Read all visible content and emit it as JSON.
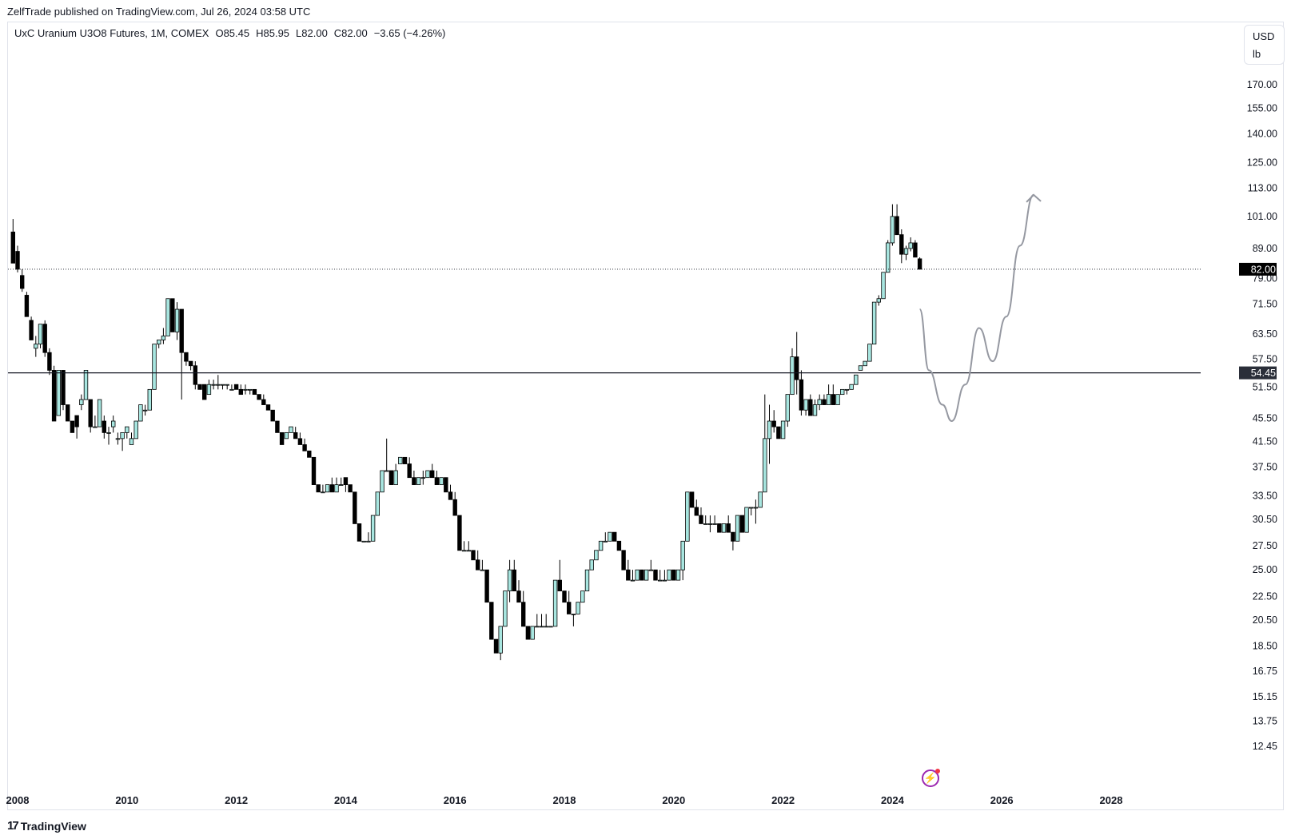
{
  "header": {
    "published": "ZelfTrade published on TradingView.com, Jul 26, 2024 03:58 UTC"
  },
  "legend": {
    "symbol": "UxC Uranium U3O8 Futures, 1M, COMEX",
    "open": "O85.45",
    "high": "H85.95",
    "low": "L82.00",
    "close": "C82.00",
    "change": "−3.65 (−4.26%)"
  },
  "currency": {
    "code": "USD",
    "unit": "lb"
  },
  "footer": {
    "brand": "TradingView",
    "logo": "tradingview-logo-icon"
  },
  "icons": {
    "flash": "lightning-icon"
  },
  "colors": {
    "up_fill": "#a8e6e0",
    "down_fill": "#000000",
    "edge": "#000000",
    "drawing": "#9598a1",
    "hline": "#131722"
  },
  "chart_data": {
    "type": "candlestick",
    "title": "UxC Uranium U3O8 Futures, 1M, COMEX",
    "y_scale": "log",
    "y_ticks": [
      "170.00",
      "155.00",
      "140.00",
      "125.00",
      "113.00",
      "101.00",
      "89.00",
      "79.00",
      "71.50",
      "63.50",
      "57.50",
      "51.50",
      "45.50",
      "41.50",
      "37.50",
      "33.50",
      "30.50",
      "27.50",
      "25.00",
      "22.50",
      "20.50",
      "18.50",
      "16.75",
      "15.15",
      "13.75",
      "12.45"
    ],
    "x_ticks": [
      "2008",
      "2010",
      "2012",
      "2014",
      "2016",
      "2018",
      "2020",
      "2022",
      "2024",
      "2026",
      "2028"
    ],
    "price_labels": [
      {
        "value": "82.00",
        "style": "last-price"
      },
      {
        "value": "54.45",
        "style": "horizontal-line"
      }
    ],
    "horizontal_line": 54.45,
    "last_price": 82.0,
    "projection_path": [
      [
        "2024-07",
        70
      ],
      [
        "2024-09",
        55
      ],
      [
        "2024-12",
        48
      ],
      [
        "2025-02",
        45
      ],
      [
        "2025-05",
        52
      ],
      [
        "2025-08",
        65
      ],
      [
        "2025-11",
        57
      ],
      [
        "2026-02",
        68
      ],
      [
        "2026-05",
        90
      ],
      [
        "2026-08",
        110
      ]
    ],
    "candles": [
      [
        "2007-12",
        95,
        100,
        84,
        84
      ],
      [
        "2008-01",
        88,
        90,
        81,
        82
      ],
      [
        "2008-02",
        80,
        82,
        75,
        76
      ],
      [
        "2008-03",
        74,
        75,
        68,
        68
      ],
      [
        "2008-04",
        67,
        68,
        62,
        62
      ],
      [
        "2008-05",
        60,
        63,
        58,
        61
      ],
      [
        "2008-06",
        61,
        66,
        60,
        66
      ],
      [
        "2008-07",
        66,
        67,
        58,
        59
      ],
      [
        "2008-08",
        59,
        60,
        54,
        55
      ],
      [
        "2008-09",
        55,
        56,
        45,
        45
      ],
      [
        "2008-10",
        46,
        55,
        46,
        55
      ],
      [
        "2008-11",
        55,
        55,
        47,
        48
      ],
      [
        "2008-12",
        48,
        48,
        45,
        45
      ],
      [
        "2009-01",
        45,
        45,
        43,
        43
      ],
      [
        "2009-02",
        46,
        46,
        42,
        44
      ],
      [
        "2009-03",
        48,
        50,
        47,
        49
      ],
      [
        "2009-04",
        49,
        55,
        49,
        55
      ],
      [
        "2009-05",
        49,
        49,
        43,
        44
      ],
      [
        "2009-06",
        44,
        46,
        44,
        44
      ],
      [
        "2009-07",
        44,
        49,
        44,
        49
      ],
      [
        "2009-08",
        45,
        46,
        42,
        43
      ],
      [
        "2009-09",
        43,
        44,
        41,
        43
      ],
      [
        "2009-10",
        44,
        46,
        43,
        45
      ],
      [
        "2009-11",
        42,
        43,
        41,
        42
      ],
      [
        "2009-12",
        42,
        43,
        40,
        43
      ],
      [
        "2010-01",
        43,
        44,
        42,
        44
      ],
      [
        "2010-02",
        41,
        43,
        41,
        42
      ],
      [
        "2010-03",
        42,
        45,
        42,
        45
      ],
      [
        "2010-04",
        45,
        48,
        45,
        48
      ],
      [
        "2010-05",
        47,
        48,
        46,
        47
      ],
      [
        "2010-06",
        47,
        51,
        47,
        51
      ],
      [
        "2010-07",
        51,
        61,
        51,
        61
      ],
      [
        "2010-08",
        61,
        62,
        60,
        62
      ],
      [
        "2010-09",
        62,
        65,
        61,
        63
      ],
      [
        "2010-10",
        63,
        73,
        63,
        73
      ],
      [
        "2010-11",
        73,
        73,
        64,
        64
      ],
      [
        "2010-12",
        64,
        72,
        62,
        70
      ],
      [
        "2011-01",
        70,
        70,
        49,
        59
      ],
      [
        "2011-02",
        59,
        59,
        56,
        57
      ],
      [
        "2011-03",
        57,
        57,
        55,
        56
      ],
      [
        "2011-04",
        56,
        57,
        51,
        52
      ],
      [
        "2011-05",
        52,
        52,
        51,
        51
      ],
      [
        "2011-06",
        52,
        52,
        49,
        49
      ],
      [
        "2011-07",
        50,
        53,
        50,
        52
      ],
      [
        "2011-08",
        52,
        53,
        51,
        52
      ],
      [
        "2011-09",
        52,
        54,
        51,
        52
      ],
      [
        "2011-10",
        52,
        52,
        51,
        52
      ],
      [
        "2011-11",
        52,
        52,
        51,
        52
      ],
      [
        "2011-12",
        51,
        52,
        51,
        51
      ],
      [
        "2012-01",
        52,
        52,
        51,
        51
      ],
      [
        "2012-02",
        51,
        52,
        50,
        50
      ],
      [
        "2012-03",
        51,
        52,
        50,
        51
      ],
      [
        "2012-04",
        51,
        51,
        50,
        51
      ],
      [
        "2012-05",
        51,
        51,
        50,
        50
      ],
      [
        "2012-06",
        50,
        50,
        49,
        49
      ],
      [
        "2012-07",
        49,
        50,
        48,
        48
      ],
      [
        "2012-08",
        48,
        48,
        47,
        47
      ],
      [
        "2012-09",
        47,
        47,
        45,
        45
      ],
      [
        "2012-10",
        45,
        45,
        43,
        43
      ],
      [
        "2012-11",
        43,
        43,
        41,
        41
      ],
      [
        "2012-12",
        42,
        43,
        42,
        43
      ],
      [
        "2013-01",
        43,
        44,
        43,
        44
      ],
      [
        "2013-02",
        43,
        44,
        42,
        42
      ],
      [
        "2013-03",
        42,
        43,
        41,
        41
      ],
      [
        "2013-04",
        41,
        42,
        40,
        40
      ],
      [
        "2013-05",
        40,
        40,
        39,
        39
      ],
      [
        "2013-06",
        39,
        39,
        35,
        35
      ],
      [
        "2013-07",
        35,
        35,
        34,
        34
      ],
      [
        "2013-08",
        34,
        35,
        34,
        34
      ],
      [
        "2013-09",
        34,
        35,
        34,
        35
      ],
      [
        "2013-10",
        35,
        36,
        34,
        34
      ],
      [
        "2013-11",
        34,
        36,
        34,
        35
      ],
      [
        "2013-12",
        35,
        36,
        35,
        35
      ],
      [
        "2014-01",
        36,
        36,
        34,
        35
      ],
      [
        "2014-02",
        35,
        35,
        34,
        34
      ],
      [
        "2014-03",
        34,
        34,
        30,
        30
      ],
      [
        "2014-04",
        30,
        30,
        28,
        28
      ],
      [
        "2014-05",
        28,
        28,
        28,
        28
      ],
      [
        "2014-06",
        28,
        29,
        28,
        28
      ],
      [
        "2014-07",
        28,
        31,
        28,
        31
      ],
      [
        "2014-08",
        31,
        34,
        31,
        34
      ],
      [
        "2014-09",
        34,
        37,
        34,
        37
      ],
      [
        "2014-10",
        37,
        42,
        37,
        37
      ],
      [
        "2014-11",
        37,
        37,
        35,
        35
      ],
      [
        "2014-12",
        35,
        38,
        35,
        37
      ],
      [
        "2015-01",
        38,
        39,
        38,
        39
      ],
      [
        "2015-02",
        39,
        39,
        38,
        38
      ],
      [
        "2015-03",
        38,
        39,
        36,
        36
      ],
      [
        "2015-04",
        36,
        37,
        35,
        35
      ],
      [
        "2015-05",
        35,
        36,
        35,
        36
      ],
      [
        "2015-06",
        36,
        37,
        35,
        36
      ],
      [
        "2015-07",
        36,
        37,
        36,
        37
      ],
      [
        "2015-08",
        37,
        38,
        36,
        36
      ],
      [
        "2015-09",
        36,
        37,
        35,
        35
      ],
      [
        "2015-10",
        35,
        36,
        35,
        36
      ],
      [
        "2015-11",
        36,
        36,
        34,
        34
      ],
      [
        "2015-12",
        34,
        35,
        33,
        33
      ],
      [
        "2016-01",
        33,
        34,
        31,
        31
      ],
      [
        "2016-02",
        31,
        31,
        27,
        27
      ],
      [
        "2016-03",
        27,
        28,
        27,
        27
      ],
      [
        "2016-04",
        27,
        28,
        27,
        27
      ],
      [
        "2016-05",
        27,
        27,
        26,
        26
      ],
      [
        "2016-06",
        26,
        27,
        25,
        25
      ],
      [
        "2016-07",
        25,
        26,
        25,
        25
      ],
      [
        "2016-08",
        25,
        25,
        22,
        22
      ],
      [
        "2016-09",
        22,
        22,
        19,
        19
      ],
      [
        "2016-10",
        19,
        19,
        18,
        18
      ],
      [
        "2016-11",
        18,
        20,
        17.5,
        20
      ],
      [
        "2016-12",
        20,
        23,
        20,
        23
      ],
      [
        "2017-01",
        23,
        26,
        22,
        25
      ],
      [
        "2017-02",
        25,
        26,
        23,
        23
      ],
      [
        "2017-03",
        23,
        24,
        22,
        22
      ],
      [
        "2017-04",
        22,
        23,
        20,
        20
      ],
      [
        "2017-05",
        20,
        20,
        19,
        19
      ],
      [
        "2017-06",
        19,
        20,
        19,
        20
      ],
      [
        "2017-07",
        20,
        21,
        20,
        20
      ],
      [
        "2017-08",
        20,
        21,
        20,
        20
      ],
      [
        "2017-09",
        20,
        21,
        20,
        20
      ],
      [
        "2017-10",
        20,
        20,
        20,
        20
      ],
      [
        "2017-11",
        20,
        24,
        20,
        24
      ],
      [
        "2017-12",
        24,
        26,
        23,
        23
      ],
      [
        "2018-01",
        23,
        23,
        22,
        22
      ],
      [
        "2018-02",
        22,
        23,
        21,
        21
      ],
      [
        "2018-03",
        21,
        21,
        20,
        21
      ],
      [
        "2018-04",
        21,
        22,
        21,
        22
      ],
      [
        "2018-05",
        22,
        23,
        22,
        23
      ],
      [
        "2018-06",
        23,
        25,
        23,
        25
      ],
      [
        "2018-07",
        25,
        26,
        25,
        26
      ],
      [
        "2018-08",
        26,
        27,
        26,
        27
      ],
      [
        "2018-09",
        27,
        28,
        27,
        28
      ],
      [
        "2018-10",
        28,
        29,
        28,
        28
      ],
      [
        "2018-11",
        28,
        29,
        28,
        29
      ],
      [
        "2018-12",
        29,
        29,
        28,
        28
      ],
      [
        "2019-01",
        28,
        28,
        27,
        27
      ],
      [
        "2019-02",
        27,
        27,
        25,
        25
      ],
      [
        "2019-03",
        25,
        26,
        24,
        24
      ],
      [
        "2019-04",
        24,
        25,
        24,
        24
      ],
      [
        "2019-05",
        24,
        25,
        24,
        25
      ],
      [
        "2019-06",
        25,
        25,
        24,
        24
      ],
      [
        "2019-07",
        24,
        25,
        24,
        25
      ],
      [
        "2019-08",
        25,
        26,
        25,
        25
      ],
      [
        "2019-09",
        25,
        25,
        24,
        24
      ],
      [
        "2019-10",
        24,
        25,
        24,
        24
      ],
      [
        "2019-11",
        24,
        25,
        24,
        24
      ],
      [
        "2019-12",
        24,
        25,
        24,
        25
      ],
      [
        "2020-01",
        25,
        25,
        24,
        24
      ],
      [
        "2020-02",
        24,
        25,
        24,
        25
      ],
      [
        "2020-03",
        25,
        28,
        24,
        28
      ],
      [
        "2020-04",
        28,
        34,
        28,
        34
      ],
      [
        "2020-05",
        34,
        34,
        32,
        32
      ],
      [
        "2020-06",
        32,
        33,
        31,
        31
      ],
      [
        "2020-07",
        31,
        32,
        30,
        30
      ],
      [
        "2020-08",
        30,
        31,
        30,
        30
      ],
      [
        "2020-09",
        30,
        31,
        29,
        30
      ],
      [
        "2020-10",
        30,
        31,
        30,
        30
      ],
      [
        "2020-11",
        30,
        30,
        29,
        29
      ],
      [
        "2020-12",
        29,
        30,
        29,
        30
      ],
      [
        "2021-01",
        30,
        31,
        29,
        29
      ],
      [
        "2021-02",
        29,
        29,
        27,
        28
      ],
      [
        "2021-03",
        28,
        31,
        28,
        31
      ],
      [
        "2021-04",
        31,
        31,
        29,
        29
      ],
      [
        "2021-05",
        29,
        32,
        29,
        32
      ],
      [
        "2021-06",
        32,
        32,
        31,
        32
      ],
      [
        "2021-07",
        32,
        33,
        30,
        32
      ],
      [
        "2021-08",
        32,
        34,
        32,
        34
      ],
      [
        "2021-09",
        34,
        50,
        34,
        42
      ],
      [
        "2021-10",
        42,
        48,
        38,
        45
      ],
      [
        "2021-11",
        45,
        47,
        43,
        44
      ],
      [
        "2021-12",
        44,
        44,
        42,
        42
      ],
      [
        "2022-01",
        42,
        45,
        42,
        45
      ],
      [
        "2022-02",
        45,
        50,
        44,
        50
      ],
      [
        "2022-03",
        50,
        60,
        50,
        58
      ],
      [
        "2022-04",
        58,
        64,
        50,
        53
      ],
      [
        "2022-05",
        53,
        55,
        46,
        47
      ],
      [
        "2022-06",
        47,
        49,
        46,
        49
      ],
      [
        "2022-07",
        49,
        50,
        46,
        46
      ],
      [
        "2022-08",
        46,
        49,
        46,
        48
      ],
      [
        "2022-09",
        48,
        50,
        47,
        49
      ],
      [
        "2022-10",
        49,
        50,
        48,
        48
      ],
      [
        "2022-11",
        48,
        52,
        48,
        50
      ],
      [
        "2022-12",
        50,
        52,
        48,
        48
      ],
      [
        "2023-01",
        48,
        50,
        48,
        50
      ],
      [
        "2023-02",
        50,
        51,
        50,
        51
      ],
      [
        "2023-03",
        51,
        51,
        50,
        51
      ],
      [
        "2023-04",
        51,
        52,
        51,
        52
      ],
      [
        "2023-05",
        52,
        54,
        52,
        54
      ],
      [
        "2023-06",
        55,
        56,
        55,
        56
      ],
      [
        "2023-07",
        56,
        57,
        56,
        57
      ],
      [
        "2023-08",
        57,
        61,
        57,
        61
      ],
      [
        "2023-09",
        61,
        72,
        61,
        72
      ],
      [
        "2023-10",
        72,
        74,
        71,
        73
      ],
      [
        "2023-11",
        73,
        81,
        73,
        81
      ],
      [
        "2023-12",
        81,
        92,
        81,
        91
      ],
      [
        "2024-01",
        91,
        106,
        90,
        101
      ],
      [
        "2024-02",
        101,
        106,
        94,
        94
      ],
      [
        "2024-03",
        94,
        96,
        84,
        87
      ],
      [
        "2024-04",
        87,
        90,
        85,
        89
      ],
      [
        "2024-05",
        89,
        93,
        88,
        91
      ],
      [
        "2024-06",
        91,
        92,
        86,
        86
      ],
      [
        "2024-07",
        85.45,
        85.95,
        82,
        82
      ]
    ]
  }
}
